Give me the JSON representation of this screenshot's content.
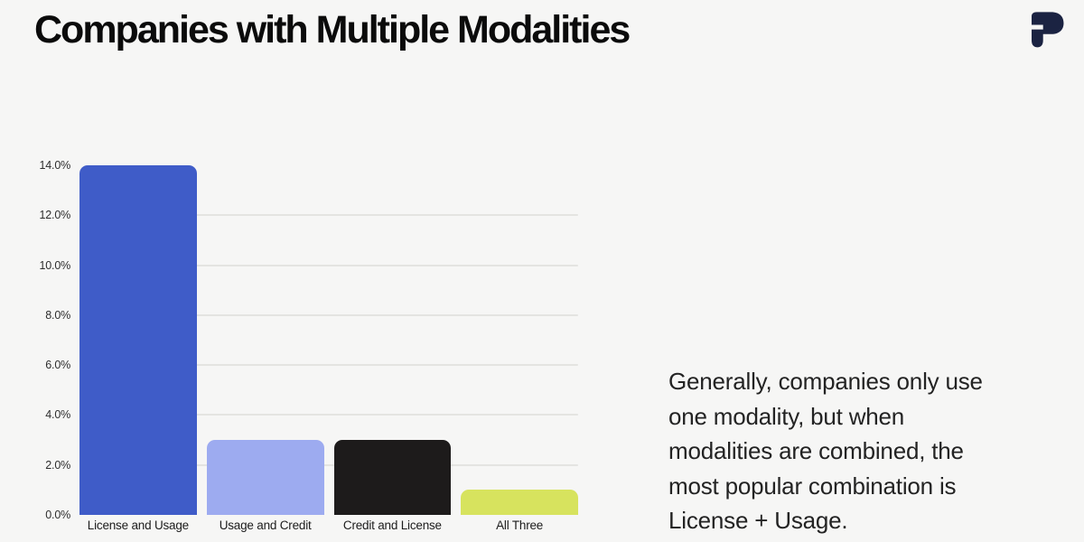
{
  "header": {
    "title": "Companies with Multiple Modalities"
  },
  "logo": {
    "name": "paid-p-logo",
    "color": "#1b2342"
  },
  "chart_data": {
    "type": "bar",
    "title": "Companies with Multiple Modalities",
    "categories": [
      "License and Usage",
      "Usage and Credit",
      "Credit and License",
      "All Three"
    ],
    "values": [
      14.0,
      3.0,
      3.0,
      1.0
    ],
    "value_labels": [
      "14.0%",
      "3.0%",
      "3.0%",
      "1.0%"
    ],
    "bar_colors": [
      "#3f5cc8",
      "#9dabf0",
      "#1d1b1b",
      "#d7e35e"
    ],
    "xlabel": "",
    "ylabel": "",
    "ylim": [
      0,
      14
    ],
    "ytick_values": [
      0,
      2,
      4,
      6,
      8,
      10,
      12,
      14
    ],
    "ytick_labels": [
      "0.0%",
      "2.0%",
      "4.0%",
      "6.0%",
      "8.0%",
      "10.0%",
      "12.0%",
      "14.0%"
    ],
    "gridline_values": [
      2,
      4,
      6,
      8,
      10,
      12
    ],
    "grid": "horizontal",
    "legend": "none"
  },
  "caption": {
    "text": "Generally, companies only use one modality, but when modalities are combined, the most popular combination is License + Usage.",
    "lines": [
      "Generally, companies only use",
      "one modality, but when",
      "modalities are combined, the",
      "most popular combination is",
      "License + Usage."
    ]
  },
  "colors": {
    "background": "#f6f6f5",
    "title_text": "#0b0b0b",
    "gridline": "#e4e4e1",
    "tick_text": "#2e2e2e",
    "caption_text": "#232323",
    "logo_navy": "#1b2342"
  }
}
